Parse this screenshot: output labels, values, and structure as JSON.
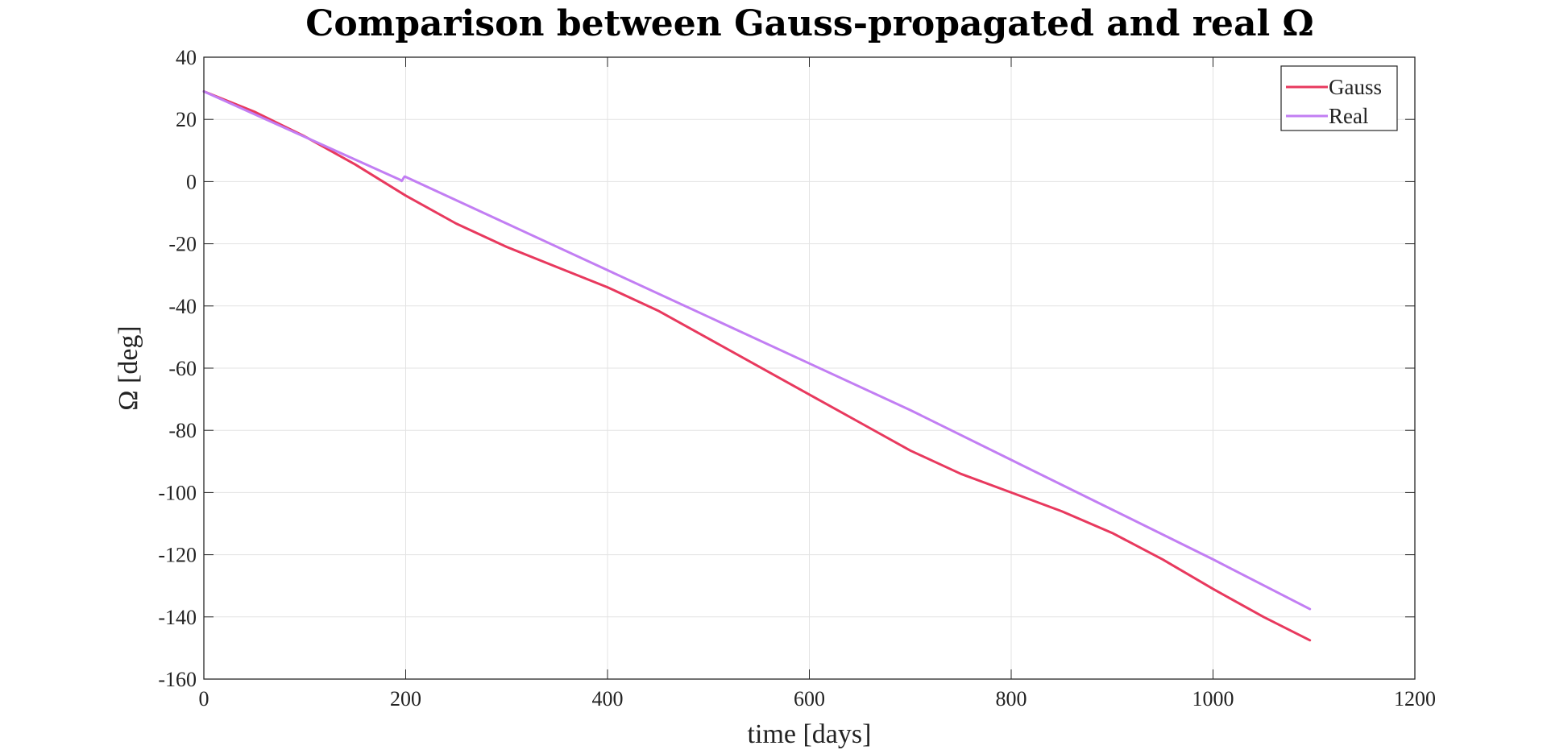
{
  "chart_data": {
    "type": "line",
    "title": "Comparison between Gauss-propagated and real  Ω",
    "xlabel": "time [days]",
    "ylabel": "Ω [deg]",
    "xlim": [
      0,
      1200
    ],
    "ylim": [
      -160,
      40
    ],
    "xticks": [
      0,
      200,
      400,
      600,
      800,
      1000,
      1200
    ],
    "yticks": [
      40,
      20,
      0,
      -20,
      -40,
      -60,
      -80,
      -100,
      -120,
      -140,
      -160
    ],
    "xtick_labels": [
      "0",
      "200",
      "400",
      "600",
      "800",
      "1000",
      "1200"
    ],
    "ytick_labels": [
      "40",
      "20",
      "0",
      "-20",
      "-40",
      "-60",
      "-80",
      "-100",
      "-120",
      "-140",
      "-160"
    ],
    "grid": true,
    "legend": {
      "position": "top-right",
      "entries": [
        "Gauss",
        "Real"
      ]
    },
    "series": [
      {
        "name": "Gauss",
        "color": "#e8395e",
        "x": [
          0,
          50,
          100,
          150,
          200,
          250,
          300,
          350,
          400,
          450,
          500,
          550,
          600,
          650,
          700,
          750,
          800,
          850,
          900,
          950,
          1000,
          1050,
          1096
        ],
        "y": [
          29,
          22.5,
          14.5,
          5.5,
          -4.5,
          -13.5,
          -21,
          -27.5,
          -34,
          -41.5,
          -50.5,
          -59.5,
          -68.5,
          -77.5,
          -86.5,
          -94,
          -100,
          -106,
          -113,
          -121.5,
          -131,
          -140,
          -147.5
        ]
      },
      {
        "name": "Real",
        "color": "#c27ef3",
        "x": [
          0,
          195,
          196,
          197,
          198,
          199,
          200,
          300,
          400,
          500,
          600,
          700,
          800,
          900,
          1000,
          1096
        ],
        "y": [
          29,
          0.5,
          0.2,
          0.6,
          1.2,
          1.6,
          1.5,
          -13.5,
          -28.5,
          -43.5,
          -58.5,
          -73.5,
          -89.5,
          -105.5,
          -121.5,
          -137.5
        ]
      }
    ]
  }
}
